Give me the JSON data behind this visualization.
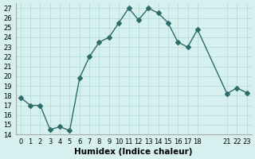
{
  "x": [
    0,
    1,
    2,
    3,
    4,
    5,
    6,
    7,
    8,
    9,
    10,
    11,
    12,
    13,
    14,
    15,
    16,
    17,
    18,
    21,
    22,
    23
  ],
  "y": [
    17.8,
    17.0,
    17.0,
    14.5,
    14.8,
    14.4,
    19.8,
    22.0,
    23.5,
    24.0,
    25.5,
    27.0,
    25.8,
    27.0,
    26.5,
    25.5,
    23.5,
    23.0,
    24.8,
    18.2,
    18.8,
    18.3
  ],
  "xlabel": "Humidex (Indice chaleur)",
  "ylim": [
    14,
    27.5
  ],
  "xlim": [
    -0.5,
    23.5
  ],
  "yticks": [
    14,
    15,
    16,
    17,
    18,
    19,
    20,
    21,
    22,
    23,
    24,
    25,
    26,
    27
  ],
  "xticks": [
    0,
    1,
    2,
    3,
    4,
    5,
    6,
    7,
    8,
    9,
    10,
    11,
    12,
    13,
    14,
    15,
    16,
    17,
    18,
    21,
    22,
    23
  ],
  "xtick_labels": [
    "0",
    "1",
    "2",
    "3",
    "4",
    "5",
    "6",
    "7",
    "8",
    "9",
    "10",
    "11",
    "12",
    "13",
    "14",
    "15",
    "16",
    "17",
    "18",
    "21",
    "22",
    "23"
  ],
  "line_color": "#2e6b6b",
  "marker": "D",
  "marker_size": 3,
  "bg_color": "#d6f0f0",
  "grid_color": "#b0d8d8",
  "tick_fontsize": 6,
  "xlabel_fontsize": 7.5
}
